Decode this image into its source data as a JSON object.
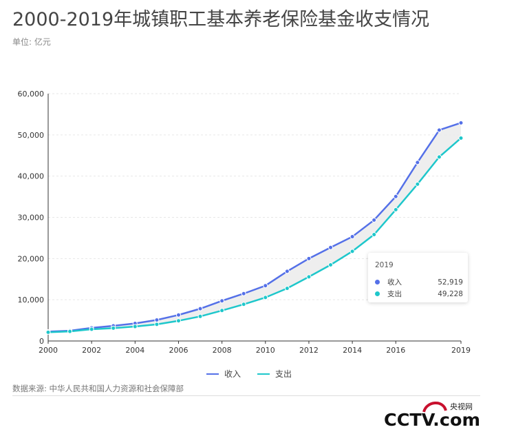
{
  "title": "2000-2019年城镇职工基本养老保险基金收支情况",
  "unit": "单位: 亿元",
  "source": "数据来源: 中华人民共和国人力资源和社会保障部",
  "logo": {
    "cn": "央视网",
    "text": "CCTV.com"
  },
  "colors": {
    "income": "#5470e8",
    "expense": "#1ec7cb",
    "band": "#ececec"
  },
  "tooltip": {
    "title": "2019",
    "rows": [
      {
        "name": "收入",
        "value": "52,919",
        "color": "#5470e8"
      },
      {
        "name": "支出",
        "value": "49,228",
        "color": "#1ec7cb"
      }
    ]
  },
  "chart_data": {
    "type": "line",
    "title": "2000-2019年城镇职工基本养老保险基金收支情况",
    "ylabel": "",
    "xlabel": "",
    "x": [
      2000,
      2001,
      2002,
      2003,
      2004,
      2005,
      2006,
      2007,
      2008,
      2009,
      2010,
      2011,
      2012,
      2013,
      2014,
      2015,
      2016,
      2017,
      2018,
      2019
    ],
    "xticks": [
      "2000",
      "2002",
      "2004",
      "2006",
      "2008",
      "2010",
      "2012",
      "2014",
      "2016",
      "2019"
    ],
    "yticks": [
      "0",
      "10,000",
      "20,000",
      "30,000",
      "40,000",
      "50,000",
      "60,000"
    ],
    "ylim": [
      0,
      60000
    ],
    "grid": true,
    "legend": "bottom",
    "series": [
      {
        "name": "收入",
        "values": [
          2278,
          2489,
          3171,
          3680,
          4258,
          5093,
          6310,
          7834,
          9740,
          11491,
          13420,
          16895,
          20001,
          22680,
          25310,
          29341,
          35058,
          43310,
          51168,
          52919
        ]
      },
      {
        "name": "支出",
        "values": [
          2115,
          2321,
          2843,
          3122,
          3502,
          4040,
          4897,
          5965,
          7390,
          8894,
          10555,
          12765,
          15562,
          18470,
          21755,
          25813,
          31854,
          38052,
          44645,
          49228
        ]
      }
    ]
  }
}
